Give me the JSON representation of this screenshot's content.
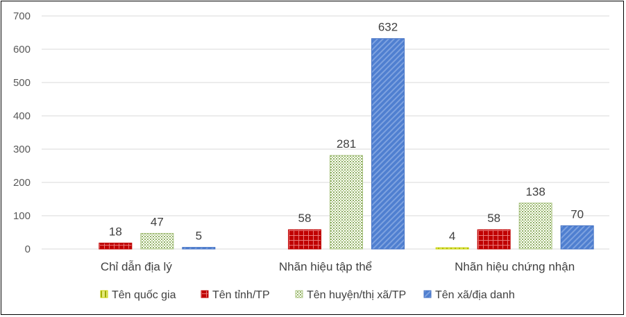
{
  "chart_data": {
    "type": "bar",
    "title": "",
    "xlabel": "",
    "ylabel": "",
    "ylim": [
      0,
      700
    ],
    "yticks": [
      0,
      100,
      200,
      300,
      400,
      500,
      600,
      700
    ],
    "grid": true,
    "legend_position": "bottom",
    "categories": [
      "Chỉ dẫn địa lý",
      "Nhãn hiệu tập thể",
      "Nhãn hiệu chứng nhận"
    ],
    "series": [
      {
        "name": "Tên quốc gia",
        "values": [
          null,
          null,
          4
        ],
        "labels": [
          "",
          "",
          "4"
        ],
        "color": "#c8d200"
      },
      {
        "name": "Tên tỉnh/TP",
        "values": [
          18,
          58,
          58
        ],
        "labels": [
          "18",
          "58",
          "58"
        ],
        "color": "#c00000"
      },
      {
        "name": "Tên huyện/thị xã/TP",
        "values": [
          47,
          281,
          138
        ],
        "labels": [
          "47",
          "281",
          "138"
        ],
        "color": "#a9c37f"
      },
      {
        "name": "Tên xã/địa danh",
        "values": [
          5,
          632,
          70
        ],
        "labels": [
          "5",
          "632",
          "70"
        ],
        "color": "#4472c4"
      }
    ]
  }
}
